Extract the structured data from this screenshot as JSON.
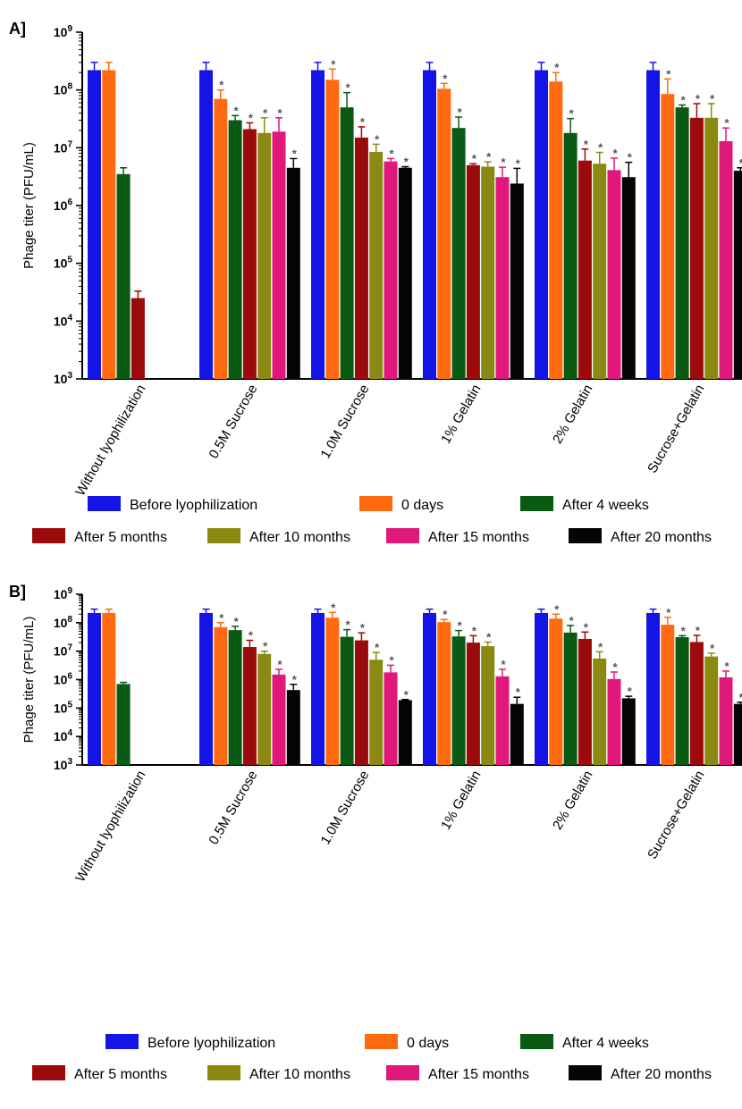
{
  "colors": {
    "before": "#1414e6",
    "day0": "#ff6a10",
    "w4": "#0a5a14",
    "m5": "#9b0b0b",
    "m10": "#8a8a12",
    "m15": "#e0187a",
    "m20": "#050505",
    "axis": "#000000",
    "star": "#555555"
  },
  "chart_data": [
    {
      "type": "bar",
      "panel_label": "A]",
      "ylabel": "Phage titer (PFU/mL)",
      "yscale": "log",
      "ylim": [
        1000,
        1000000000
      ],
      "yticks": [
        {
          "base": "10",
          "exp": "3"
        },
        {
          "base": "10",
          "exp": "4"
        },
        {
          "base": "10",
          "exp": "5"
        },
        {
          "base": "10",
          "exp": "6"
        },
        {
          "base": "10",
          "exp": "7"
        },
        {
          "base": "10",
          "exp": "8"
        },
        {
          "base": "10",
          "exp": "9"
        }
      ],
      "categories": [
        "Without lyophilization",
        "0.5M Sucrose",
        "1.0M Sucrose",
        "1% Gelatin",
        "2% Gelatin",
        "Sucrose+Gelatin"
      ],
      "legend": {
        "placement": "bottom"
      },
      "series": [
        {
          "name": "Before lyophilization",
          "color_key": "before",
          "values": [
            220000000,
            220000000,
            220000000,
            220000000,
            220000000,
            220000000
          ],
          "err": [
            80000000,
            80000000,
            80000000,
            80000000,
            80000000,
            80000000
          ],
          "star": [
            false,
            false,
            false,
            false,
            false,
            false
          ]
        },
        {
          "name": "0 days",
          "color_key": "day0",
          "values": [
            220000000,
            70000000,
            150000000,
            105000000,
            140000000,
            85000000
          ],
          "err": [
            80000000,
            30000000,
            80000000,
            25000000,
            60000000,
            70000000
          ],
          "star": [
            false,
            true,
            true,
            true,
            true,
            true
          ]
        },
        {
          "name": "After 4 weeks",
          "color_key": "w4",
          "values": [
            3500000,
            30000000,
            50000000,
            22000000,
            18000000,
            50000000
          ],
          "err": [
            1000000,
            6000000,
            40000000,
            12000000,
            14000000,
            5000000
          ],
          "star": [
            false,
            true,
            true,
            true,
            true,
            true
          ]
        },
        {
          "name": "After 5 months",
          "color_key": "m5",
          "values": [
            25000,
            21000000,
            15000000,
            5000000,
            6000000,
            33000000
          ],
          "err": [
            8000,
            6000000,
            8000000,
            300000,
            3500000,
            25000000
          ],
          "star": [
            false,
            true,
            true,
            true,
            true,
            true
          ]
        },
        {
          "name": "After 10 months",
          "color_key": "m10",
          "values": [
            null,
            18000000,
            8500000,
            4700000,
            5300000,
            33000000
          ],
          "err": [
            null,
            15000000,
            3000000,
            1000000,
            3000000,
            25000000
          ],
          "star": [
            false,
            true,
            true,
            true,
            true,
            true
          ]
        },
        {
          "name": "After 15 months",
          "color_key": "m15",
          "values": [
            null,
            19000000,
            5800000,
            3100000,
            4100000,
            13000000
          ],
          "err": [
            null,
            14000000,
            700000,
            1500000,
            2500000,
            9000000
          ],
          "star": [
            false,
            true,
            true,
            true,
            true,
            true
          ]
        },
        {
          "name": "After 20 months",
          "color_key": "m20",
          "values": [
            null,
            4500000,
            4500000,
            2400000,
            3100000,
            4000000
          ],
          "err": [
            null,
            2000000,
            200000,
            2000000,
            2500000,
            500000
          ],
          "star": [
            false,
            true,
            true,
            true,
            true,
            true
          ]
        }
      ]
    },
    {
      "type": "bar",
      "panel_label": "B]",
      "ylabel": "Phage titer (PFU/mL)",
      "yscale": "log",
      "ylim": [
        1000,
        1000000000
      ],
      "yticks": [
        {
          "base": "10",
          "exp": "3"
        },
        {
          "base": "10",
          "exp": "4"
        },
        {
          "base": "10",
          "exp": "5"
        },
        {
          "base": "10",
          "exp": "6"
        },
        {
          "base": "10",
          "exp": "7"
        },
        {
          "base": "10",
          "exp": "8"
        },
        {
          "base": "10",
          "exp": "9"
        }
      ],
      "categories": [
        "Without lyophilization",
        "0.5M Sucrose",
        "1.0M Sucrose",
        "1% Gelatin",
        "2% Gelatin",
        "Sucrose+Gelatin"
      ],
      "legend": {
        "placement": "bottom"
      },
      "series": [
        {
          "name": "Before lyophilization",
          "color_key": "before",
          "values": [
            220000000,
            220000000,
            220000000,
            220000000,
            220000000,
            220000000
          ],
          "err": [
            80000000,
            80000000,
            80000000,
            80000000,
            80000000,
            80000000
          ],
          "star": [
            false,
            false,
            false,
            false,
            false,
            false
          ]
        },
        {
          "name": "0 days",
          "color_key": "day0",
          "values": [
            220000000,
            70000000,
            150000000,
            105000000,
            140000000,
            85000000
          ],
          "err": [
            80000000,
            30000000,
            80000000,
            25000000,
            60000000,
            70000000
          ],
          "star": [
            false,
            true,
            true,
            true,
            true,
            true
          ]
        },
        {
          "name": "After 4 weeks",
          "color_key": "w4",
          "values": [
            700000,
            55000000,
            32000000,
            33000000,
            45000000,
            31000000
          ],
          "err": [
            100000,
            20000000,
            25000000,
            20000000,
            35000000,
            4000000
          ],
          "star": [
            false,
            true,
            true,
            true,
            true,
            true
          ]
        },
        {
          "name": "After 5 months",
          "color_key": "m5",
          "values": [
            null,
            14000000,
            24000000,
            20000000,
            27000000,
            21000000
          ],
          "err": [
            null,
            10000000,
            20000000,
            15000000,
            20000000,
            15000000
          ],
          "star": [
            false,
            true,
            true,
            true,
            true,
            true
          ]
        },
        {
          "name": "After 10 months",
          "color_key": "m10",
          "values": [
            null,
            8000000,
            5000000,
            15000000,
            5500000,
            6500000
          ],
          "err": [
            null,
            2000000,
            4000000,
            6000000,
            4000000,
            2000000
          ],
          "star": [
            false,
            true,
            true,
            true,
            true,
            true
          ]
        },
        {
          "name": "After 15 months",
          "color_key": "m15",
          "values": [
            null,
            1500000,
            1800000,
            1300000,
            1050000,
            1200000
          ],
          "err": [
            null,
            800000,
            1400000,
            1000000,
            800000,
            800000
          ],
          "star": [
            false,
            true,
            true,
            true,
            true,
            true
          ]
        },
        {
          "name": "After 20 months",
          "color_key": "m20",
          "values": [
            null,
            430000,
            190000,
            140000,
            220000,
            140000
          ],
          "err": [
            null,
            250000,
            10000,
            100000,
            40000,
            20000
          ],
          "star": [
            false,
            true,
            true,
            true,
            true,
            true
          ]
        }
      ]
    }
  ]
}
